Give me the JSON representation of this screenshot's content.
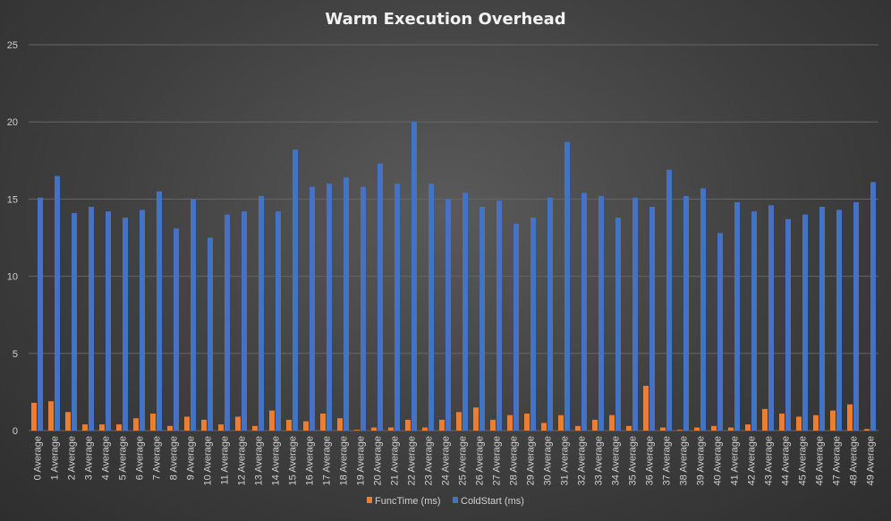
{
  "chart_data": {
    "type": "bar",
    "title": "Warm Execution Overhead",
    "xlabel": "",
    "ylabel": "",
    "ylim": [
      0,
      25
    ],
    "yticks": [
      0,
      5,
      10,
      15,
      20,
      25
    ],
    "grid": true,
    "legend_position": "bottom",
    "categories": [
      "0 Average",
      "1 Average",
      "2 Average",
      "3 Average",
      "4 Average",
      "5 Average",
      "6 Average",
      "7 Average",
      "8 Average",
      "9 Average",
      "10 Average",
      "11 Average",
      "12 Average",
      "13 Average",
      "14 Average",
      "15 Average",
      "16 Average",
      "17 Average",
      "18 Average",
      "19 Average",
      "20 Average",
      "21 Average",
      "22 Average",
      "23 Average",
      "24 Average",
      "25 Average",
      "26 Average",
      "27 Average",
      "28 Average",
      "29 Average",
      "30 Average",
      "31 Average",
      "32 Average",
      "33 Average",
      "34 Average",
      "35 Average",
      "36 Average",
      "37 Average",
      "38 Average",
      "39 Average",
      "40 Average",
      "41 Average",
      "42 Average",
      "43 Average",
      "44 Average",
      "45 Average",
      "46 Average",
      "47 Average",
      "48 Average",
      "49 Average"
    ],
    "series": [
      {
        "name": "FuncTime (ms)",
        "color": "#ed7d31",
        "values": [
          1.8,
          1.9,
          1.2,
          0.4,
          0.4,
          0.4,
          0.8,
          1.1,
          0.3,
          0.9,
          0.7,
          0.4,
          0.9,
          0.3,
          1.3,
          0.7,
          0.6,
          1.1,
          0.8,
          0.05,
          0.2,
          0.2,
          0.7,
          0.2,
          0.7,
          1.2,
          1.5,
          0.7,
          1.0,
          1.1,
          0.5,
          1.0,
          0.3,
          0.7,
          1.0,
          0.3,
          2.9,
          0.2,
          0.05,
          0.2,
          0.3,
          0.2,
          0.4,
          1.4,
          1.1,
          0.9,
          1.0,
          1.3,
          1.7,
          0.1
        ]
      },
      {
        "name": "ColdStart (ms)",
        "color": "#4472c4",
        "values": [
          15.1,
          16.5,
          14.1,
          14.5,
          14.2,
          13.8,
          14.3,
          15.5,
          13.1,
          15.0,
          12.5,
          14.0,
          14.2,
          15.2,
          14.2,
          18.2,
          15.8,
          16.0,
          16.4,
          15.8,
          17.3,
          16.0,
          20.0,
          16.0,
          15.0,
          15.4,
          14.5,
          14.9,
          13.4,
          13.8,
          15.1,
          18.7,
          15.4,
          15.2,
          13.8,
          15.1,
          14.5,
          16.9,
          15.2,
          15.7,
          12.8,
          14.8,
          14.2,
          14.6,
          13.7,
          14.0,
          14.5,
          14.3,
          14.8,
          16.1
        ]
      }
    ]
  }
}
